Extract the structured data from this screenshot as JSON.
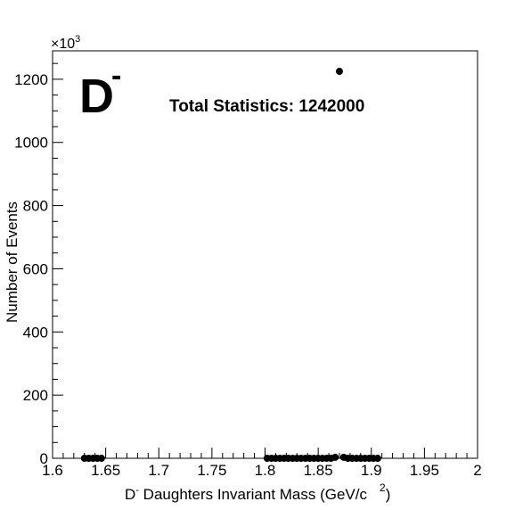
{
  "chart_data": {
    "type": "scatter",
    "title": "",
    "xlabel": "D",
    "xlabel_sup": "-",
    "xlabel_rest": " Daughters Invariant Mass (GeV/c",
    "xlabel_unit_sup": "2",
    "xlabel_close": ")",
    "ylabel": "Number of Events",
    "y_multiplier_base": "×10",
    "y_multiplier_exp": "3",
    "xlim": [
      1.6,
      2.0
    ],
    "ylim": [
      0,
      1290
    ],
    "x_ticks": [
      "1.6",
      "1.65",
      "1.7",
      "1.75",
      "1.8",
      "1.85",
      "1.9",
      "1.95",
      "2"
    ],
    "x_tick_values": [
      1.6,
      1.65,
      1.7,
      1.75,
      1.8,
      1.85,
      1.9,
      1.95,
      2.0
    ],
    "y_ticks": [
      "0",
      "200",
      "400",
      "600",
      "800",
      "1000",
      "1200"
    ],
    "y_tick_values": [
      0,
      200,
      400,
      600,
      800,
      1000,
      1200
    ],
    "grid": false,
    "annotations": {
      "particle": "D",
      "particle_sup": "-",
      "stats": "Total Statistics: 1242000"
    },
    "series": [
      {
        "x": [
          1.63,
          1.634,
          1.638,
          1.642,
          1.646,
          1.802,
          1.806,
          1.81,
          1.814,
          1.818,
          1.822,
          1.826,
          1.83,
          1.834,
          1.838,
          1.842,
          1.846,
          1.85,
          1.854,
          1.858,
          1.862,
          1.866,
          1.87,
          1.874,
          1.878,
          1.882,
          1.886,
          1.89,
          1.894,
          1.898,
          1.902,
          1.906
        ],
        "y": [
          0,
          0,
          0,
          0,
          0,
          0,
          0,
          0,
          0,
          0,
          0,
          0,
          0,
          0,
          0,
          0,
          0,
          0,
          0,
          0,
          0,
          3,
          1225,
          3,
          0,
          0,
          0,
          0,
          0,
          0,
          0,
          0
        ]
      }
    ]
  }
}
